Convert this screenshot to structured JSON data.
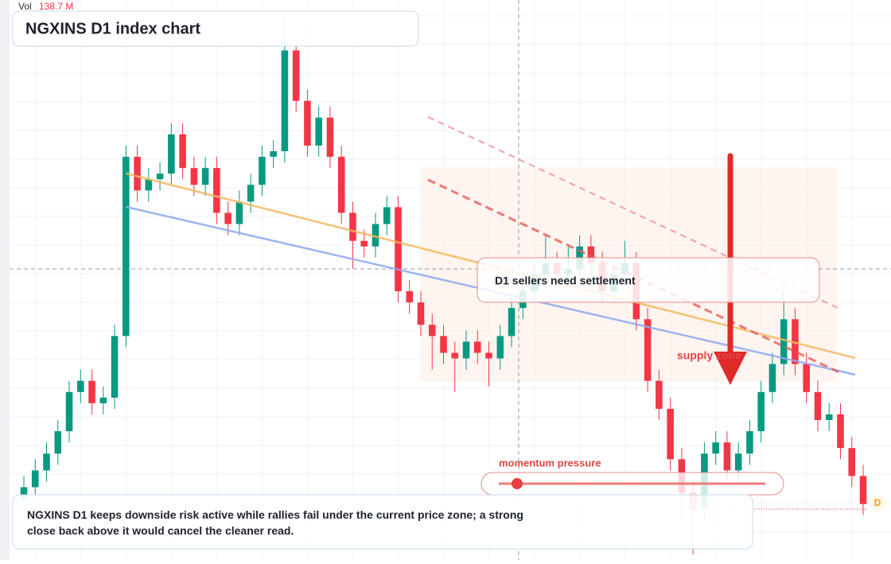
{
  "chart_data": {
    "type": "candlestick",
    "title": "NGXINS D1 index chart",
    "volume_label": "Vol",
    "volume_value": "138.7 M",
    "annotation_box": "D1 sellers need settlement",
    "zone_label": "supply zone",
    "slider_label": "momentum pressure",
    "note": "NGXINS D1 keeps downside risk active while rallies fail under the current price zone; a strong close back above it would cancel the cleaner read.",
    "badge": "D",
    "up_color": "#089981",
    "down_color": "#f23645",
    "ylim": [
      0,
      100
    ],
    "open": [
      11,
      13,
      16,
      19,
      23,
      30,
      32,
      28,
      29,
      40,
      72,
      66,
      68,
      69,
      76,
      70,
      67,
      70,
      62,
      60,
      64,
      67,
      72,
      73,
      91,
      82,
      74,
      79,
      72,
      62,
      57,
      56,
      60,
      63,
      48,
      46,
      42,
      40,
      37,
      36,
      39,
      37,
      36,
      40,
      45,
      48,
      51,
      53,
      51,
      52,
      56,
      53,
      48,
      51,
      53,
      43,
      32,
      27,
      18,
      12,
      9,
      19,
      21,
      16,
      19,
      23,
      30,
      35,
      43,
      35,
      30,
      25,
      26,
      20,
      15
    ],
    "high": [
      15,
      18,
      21,
      25,
      32,
      34,
      34,
      31,
      42,
      74,
      74,
      70,
      71,
      78,
      78,
      72,
      72,
      72,
      64,
      66,
      69,
      74,
      75,
      98,
      93,
      84,
      81,
      81,
      74,
      64,
      59,
      62,
      65,
      65,
      50,
      48,
      44,
      42,
      39,
      41,
      41,
      39,
      42,
      47,
      50,
      53,
      58,
      55,
      56,
      58,
      58,
      55,
      53,
      57,
      55,
      45,
      34,
      29,
      20,
      14,
      21,
      23,
      23,
      21,
      25,
      32,
      37,
      48,
      45,
      37,
      32,
      28,
      28,
      22,
      17
    ],
    "low": [
      9,
      11,
      14,
      17,
      21,
      28,
      26,
      26,
      27,
      38,
      64,
      64,
      66,
      67,
      68,
      65,
      65,
      60,
      58,
      58,
      62,
      65,
      70,
      71,
      80,
      72,
      72,
      70,
      60,
      52,
      54,
      54,
      58,
      46,
      44,
      40,
      34,
      35,
      30,
      34,
      35,
      31,
      34,
      38,
      43,
      46,
      49,
      49,
      49,
      50,
      51,
      46,
      46,
      49,
      41,
      30,
      25,
      16,
      7,
      1,
      7,
      17,
      14,
      14,
      17,
      21,
      28,
      33,
      33,
      28,
      23,
      23,
      18,
      13,
      8
    ],
    "close": [
      13,
      16,
      19,
      23,
      30,
      32,
      28,
      29,
      40,
      72,
      66,
      68,
      69,
      76,
      70,
      67,
      70,
      62,
      60,
      64,
      67,
      72,
      73,
      91,
      82,
      74,
      79,
      72,
      62,
      57,
      56,
      60,
      63,
      48,
      46,
      42,
      40,
      37,
      36,
      39,
      37,
      36,
      40,
      45,
      48,
      51,
      53,
      51,
      52,
      56,
      53,
      48,
      51,
      53,
      43,
      32,
      27,
      18,
      12,
      9,
      19,
      21,
      16,
      19,
      23,
      30,
      35,
      43,
      35,
      30,
      25,
      26,
      20,
      15,
      10
    ]
  }
}
